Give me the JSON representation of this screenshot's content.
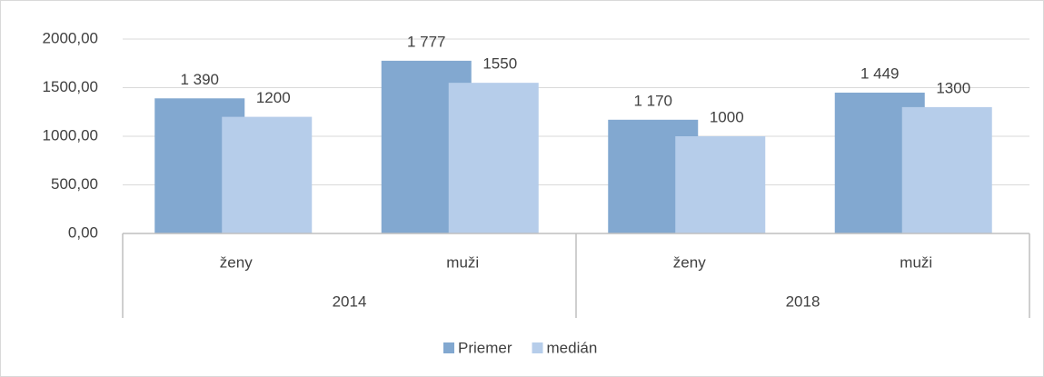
{
  "chart_data": {
    "type": "bar",
    "categories": [
      "ženy",
      "muži",
      "ženy",
      "muži"
    ],
    "groups": [
      "2014",
      "2018"
    ],
    "series": [
      {
        "name": "Priemer",
        "color": "#82a8d0",
        "values": [
          1390,
          1777,
          1170,
          1449
        ],
        "value_labels": [
          "1 390",
          "1 777",
          "1 170",
          "1 449"
        ]
      },
      {
        "name": "medián",
        "color": "#b6cdea",
        "values": [
          1200,
          1550,
          1000,
          1300
        ]
      }
    ],
    "ylim": [
      0,
      2000
    ],
    "yticks": [
      {
        "value": 0,
        "label": "0,00"
      },
      {
        "value": 500,
        "label": "500,00"
      },
      {
        "value": 1000,
        "label": "1000,00"
      },
      {
        "value": 1500,
        "label": "1500,00"
      },
      {
        "value": 2000,
        "label": "2000,00"
      }
    ],
    "grid": true,
    "legend": "bottom"
  }
}
